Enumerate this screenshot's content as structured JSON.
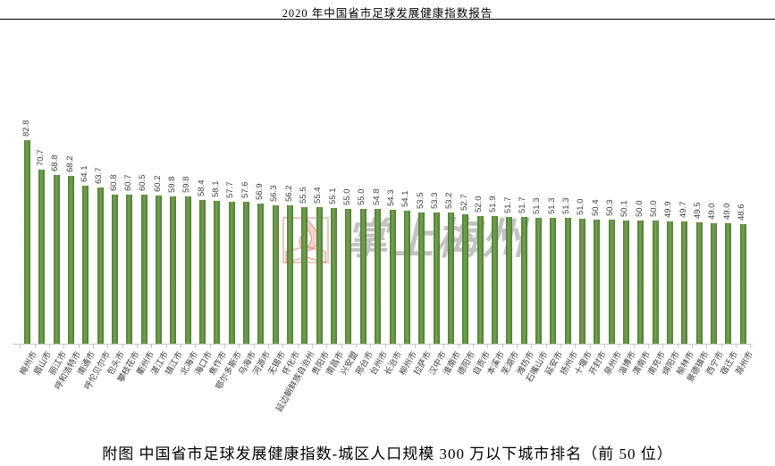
{
  "header": {
    "title": "2020 年中国省市足球发展健康指数报告"
  },
  "caption": "附图 中国省市足球发展健康指数-城区人口规模 300 万以下城市排名（前 50 位）",
  "watermark": {
    "logo": "flame-book-logo",
    "text": "掌上梅州",
    "logo_color": "#d9695f",
    "text_color": "#787878"
  },
  "chart_data": {
    "type": "bar",
    "categories": [
      "梅州市",
      "眉山市",
      "丽江市",
      "呼和浩特市",
      "南通市",
      "呼伦贝尔市",
      "包头市",
      "攀枝花市",
      "衢州市",
      "湛江市",
      "镇江市",
      "北海市",
      "海口市",
      "焦作市",
      "鄂尔多斯市",
      "乌海市",
      "河源市",
      "无锡市",
      "怀化市",
      "延边朝鲜族自治州",
      "贵阳市",
      "南昌市",
      "兴安盟",
      "邢台市",
      "台州市",
      "长治市",
      "柳州市",
      "拉萨市",
      "汉中市",
      "淮南市",
      "德阳市",
      "自贡市",
      "本溪市",
      "芜湖市",
      "潍坊市",
      "石嘴山市",
      "延安市",
      "扬州市",
      "十堰市",
      "开封市",
      "泉州市",
      "淄博市",
      "渭南市",
      "南充市",
      "绵阳市",
      "榆林市",
      "景德镇市",
      "西宁市",
      "宿迁市",
      "滁州市"
    ],
    "values": [
      82.8,
      70.7,
      68.8,
      68.2,
      64.1,
      63.7,
      60.8,
      60.7,
      60.5,
      60.2,
      59.8,
      59.8,
      58.4,
      58.1,
      57.7,
      57.6,
      56.9,
      56.3,
      56.2,
      55.5,
      55.4,
      55.1,
      55.0,
      55.0,
      54.8,
      54.3,
      54.1,
      53.5,
      53.3,
      53.2,
      52.7,
      52.0,
      51.9,
      51.7,
      51.7,
      51.3,
      51.3,
      51.3,
      51.0,
      50.4,
      50.3,
      50.1,
      50.0,
      50.0,
      49.9,
      49.7,
      49.5,
      49.0,
      49.0,
      48.6
    ],
    "title": "",
    "xlabel": "",
    "ylabel": "",
    "ylim": [
      0,
      90
    ],
    "y_axis_visible": false,
    "grid": false,
    "legend": "none",
    "bar_color": "#5d8f3f",
    "label_color": "#404040",
    "value_labels_rotation_deg": -90,
    "category_labels_rotation_deg": -60
  }
}
